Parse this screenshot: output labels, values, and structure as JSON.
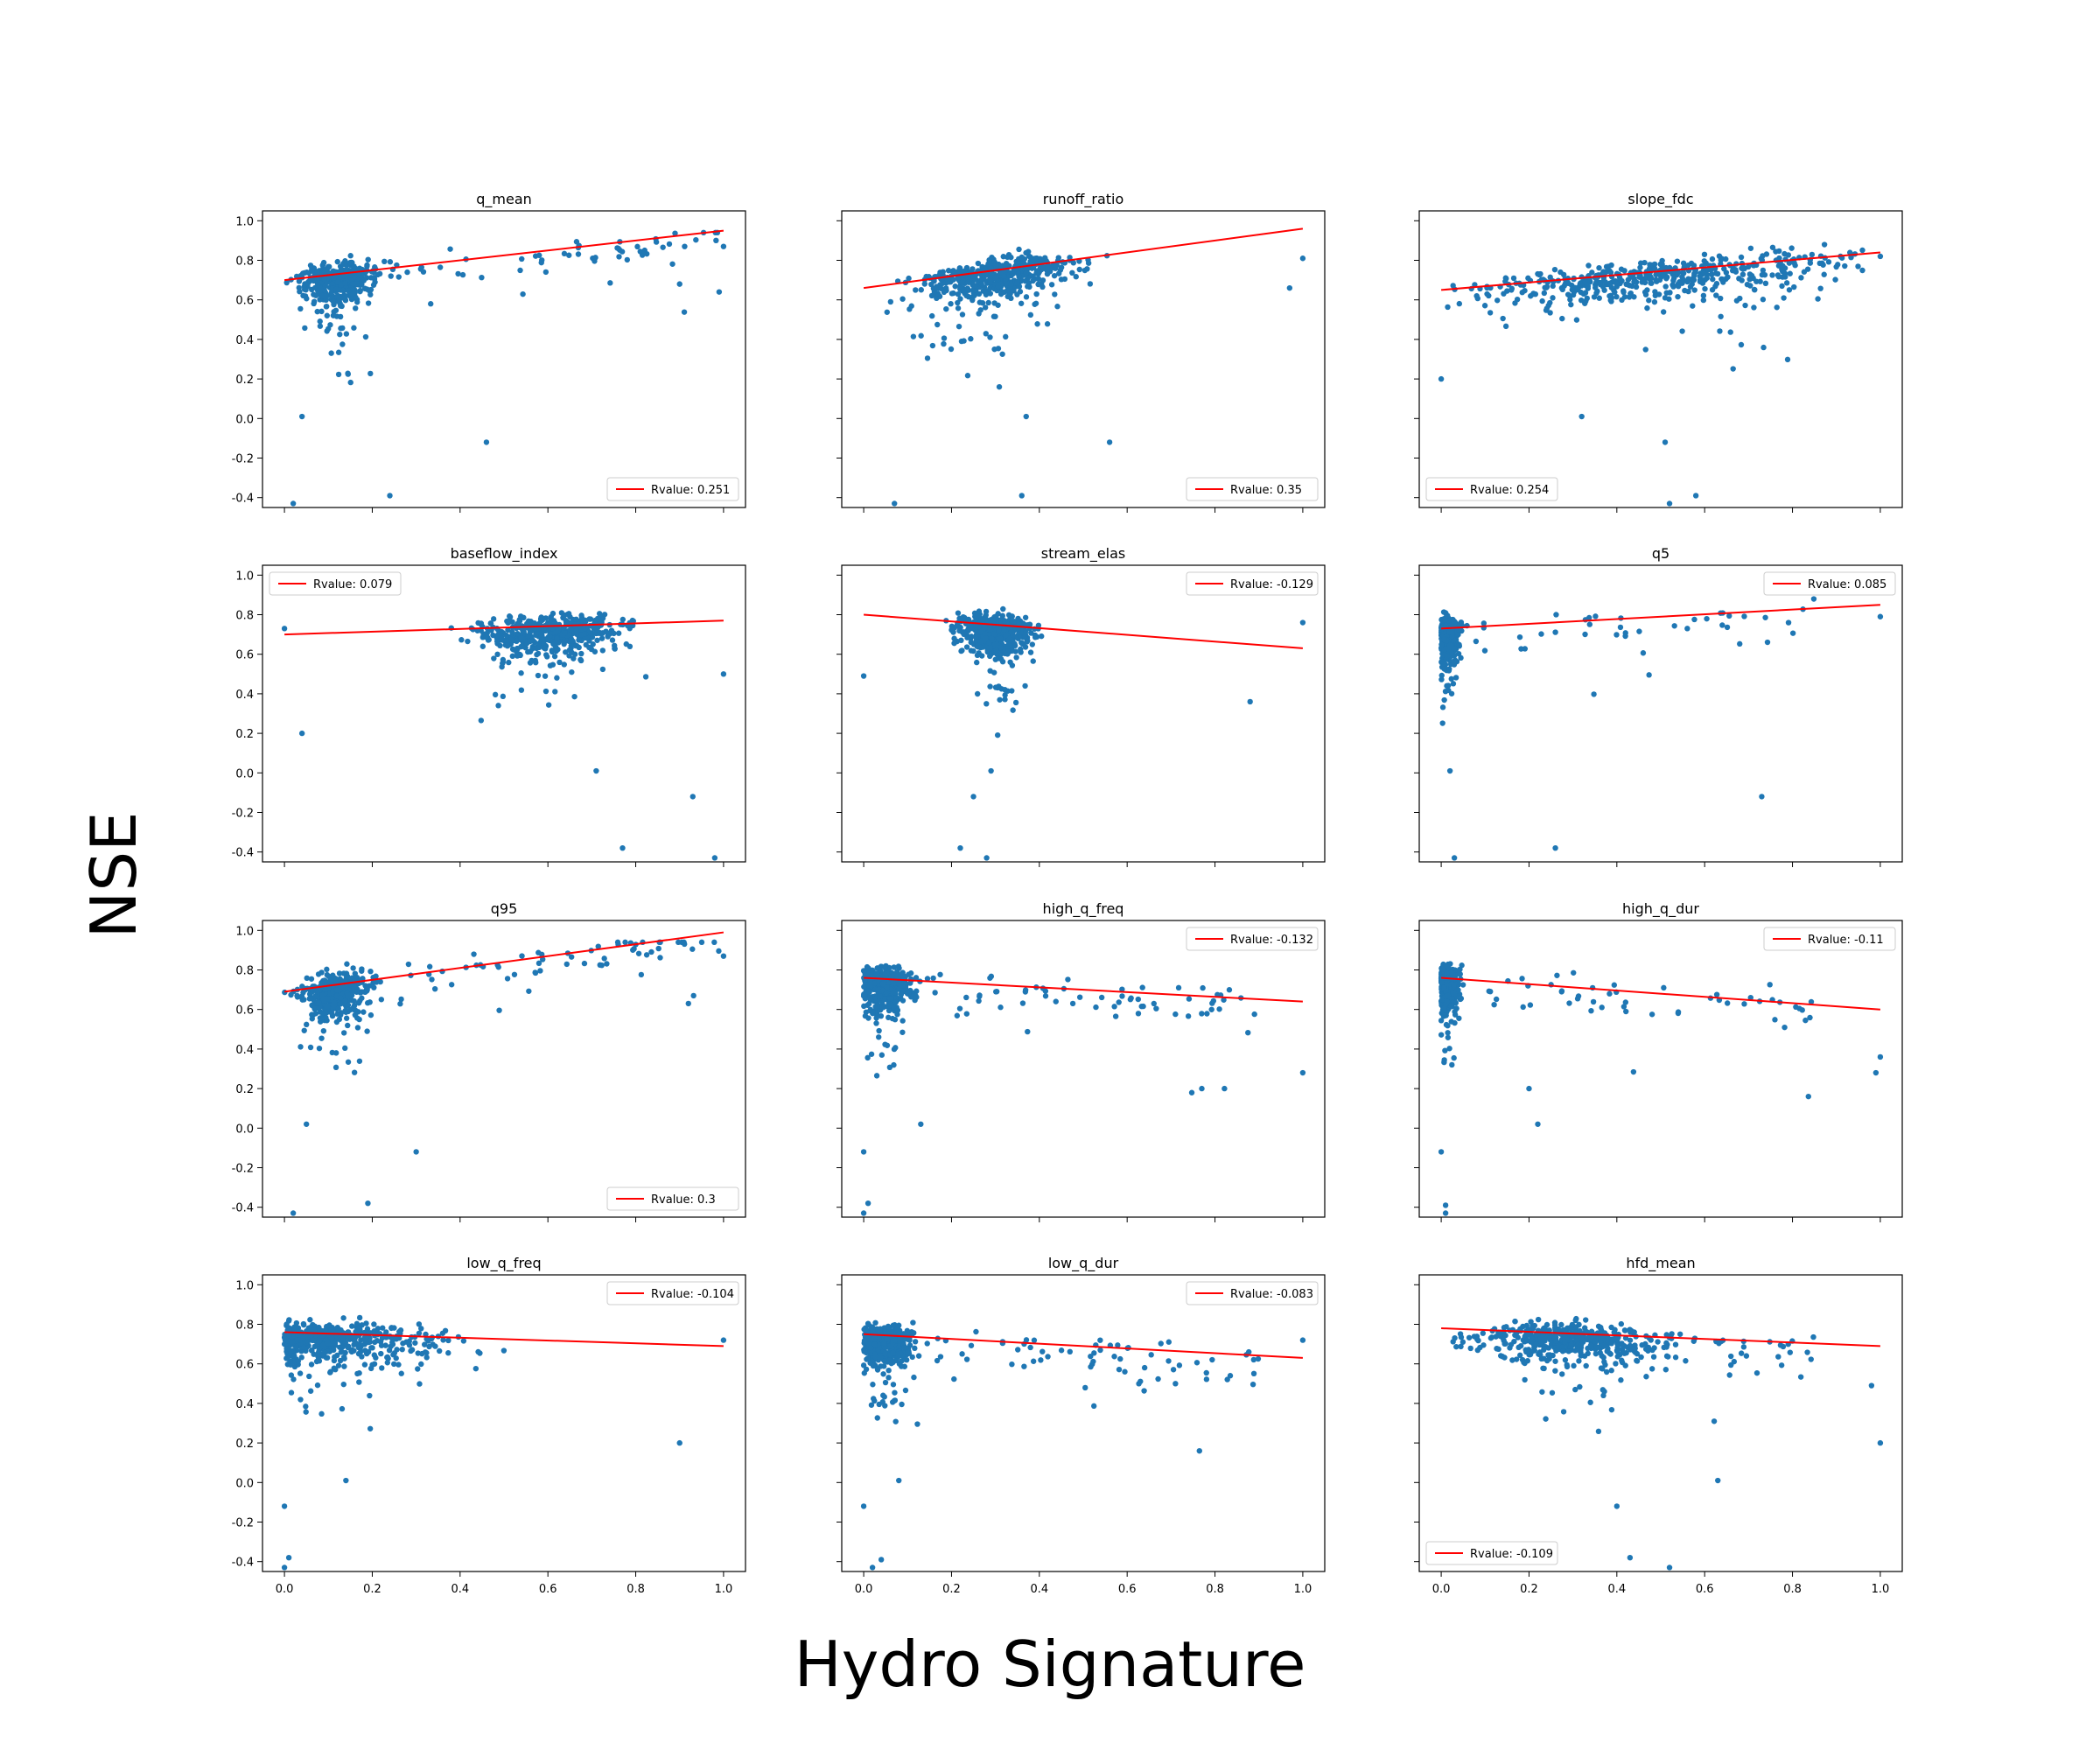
{
  "figure": {
    "xlabel": "Hydro Signature",
    "ylabel": "NSE",
    "point_color": "#1f77b4",
    "line_color": "#ff0000"
  },
  "chart_data": [
    {
      "type": "scatter",
      "title": "q_mean",
      "legend": "Rvalue: 0.251",
      "legend_loc": "lower right",
      "fit": [
        0.7,
        0.95
      ],
      "xlim": [
        -0.05,
        1.05
      ],
      "ylim": [
        -0.45,
        1.05
      ],
      "yticks": [
        "-0.4",
        "-0.2",
        "0.0",
        "0.2",
        "0.4",
        "0.6",
        "0.8",
        "1.0"
      ],
      "xticks": [],
      "dist": "skew",
      "outliers": [
        [
          0.04,
          0.01
        ],
        [
          0.46,
          -0.12
        ],
        [
          0.24,
          -0.39
        ],
        [
          0.02,
          -0.43
        ],
        [
          1.0,
          0.87
        ],
        [
          0.99,
          0.64
        ],
        [
          0.9,
          0.68
        ]
      ]
    },
    {
      "type": "scatter",
      "title": "runoff_ratio",
      "legend": "Rvalue: 0.35",
      "legend_loc": "lower right",
      "fit": [
        0.66,
        0.96
      ],
      "xlim": [
        -0.05,
        1.05
      ],
      "ylim": [
        -0.45,
        1.05
      ],
      "yticks": [],
      "xticks": [],
      "dist": "mid",
      "outliers": [
        [
          0.37,
          0.01
        ],
        [
          0.56,
          -0.12
        ],
        [
          0.36,
          -0.39
        ],
        [
          0.07,
          -0.43
        ],
        [
          1.0,
          0.81
        ],
        [
          0.97,
          0.66
        ]
      ]
    },
    {
      "type": "scatter",
      "title": "slope_fdc",
      "legend": "Rvalue: 0.254",
      "legend_loc": "lower left",
      "fit": [
        0.65,
        0.84
      ],
      "xlim": [
        -0.05,
        1.05
      ],
      "ylim": [
        -0.45,
        1.05
      ],
      "yticks": [],
      "xticks": [],
      "dist": "wide",
      "outliers": [
        [
          0.32,
          0.01
        ],
        [
          0.51,
          -0.12
        ],
        [
          0.58,
          -0.39
        ],
        [
          0.52,
          -0.43
        ],
        [
          0.0,
          0.2
        ],
        [
          1.0,
          0.82
        ]
      ]
    },
    {
      "type": "scatter",
      "title": "baseflow_index",
      "legend": "Rvalue: 0.079",
      "legend_loc": "upper left",
      "fit": [
        0.7,
        0.77
      ],
      "xlim": [
        -0.05,
        1.05
      ],
      "ylim": [
        -0.45,
        1.05
      ],
      "yticks": [
        "-0.4",
        "-0.2",
        "0.0",
        "0.2",
        "0.4",
        "0.6",
        "0.8",
        "1.0"
      ],
      "xticks": [],
      "dist": "right",
      "outliers": [
        [
          0.71,
          0.01
        ],
        [
          0.93,
          -0.12
        ],
        [
          0.77,
          -0.38
        ],
        [
          0.98,
          -0.43
        ],
        [
          0.04,
          0.2
        ],
        [
          0.0,
          0.73
        ],
        [
          1.0,
          0.5
        ]
      ]
    },
    {
      "type": "scatter",
      "title": "stream_elas",
      "legend": "Rvalue: -0.129",
      "legend_loc": "upper right",
      "fit": [
        0.8,
        0.63
      ],
      "xlim": [
        -0.05,
        1.05
      ],
      "ylim": [
        -0.45,
        1.05
      ],
      "yticks": [],
      "xticks": [],
      "dist": "center",
      "outliers": [
        [
          0.29,
          0.01
        ],
        [
          0.25,
          -0.12
        ],
        [
          0.22,
          -0.38
        ],
        [
          0.28,
          -0.43
        ],
        [
          0.0,
          0.49
        ],
        [
          1.0,
          0.76
        ],
        [
          0.88,
          0.36
        ]
      ]
    },
    {
      "type": "scatter",
      "title": "q5",
      "legend": "Rvalue: 0.085",
      "legend_loc": "upper right",
      "fit": [
        0.73,
        0.85
      ],
      "xlim": [
        -0.05,
        1.05
      ],
      "ylim": [
        -0.45,
        1.05
      ],
      "yticks": [],
      "xticks": [],
      "dist": "extreme",
      "outliers": [
        [
          0.02,
          0.01
        ],
        [
          0.73,
          -0.12
        ],
        [
          0.26,
          -0.38
        ],
        [
          0.03,
          -0.43
        ],
        [
          1.0,
          0.79
        ]
      ]
    },
    {
      "type": "scatter",
      "title": "q95",
      "legend": "Rvalue: 0.3",
      "legend_loc": "lower right",
      "fit": [
        0.69,
        0.99
      ],
      "xlim": [
        -0.05,
        1.05
      ],
      "ylim": [
        -0.45,
        1.05
      ],
      "yticks": [
        "-0.4",
        "-0.2",
        "0.0",
        "0.2",
        "0.4",
        "0.6",
        "0.8",
        "1.0"
      ],
      "xticks": [],
      "dist": "skew",
      "outliers": [
        [
          0.05,
          0.02
        ],
        [
          0.3,
          -0.12
        ],
        [
          0.19,
          -0.38
        ],
        [
          0.02,
          -0.43
        ],
        [
          1.0,
          0.87
        ],
        [
          0.92,
          0.63
        ]
      ]
    },
    {
      "type": "scatter",
      "title": "high_q_freq",
      "legend": "Rvalue: -0.132",
      "legend_loc": "upper right",
      "fit": [
        0.76,
        0.64
      ],
      "xlim": [
        -0.05,
        1.05
      ],
      "ylim": [
        -0.45,
        1.05
      ],
      "yticks": [],
      "xticks": [],
      "dist": "left",
      "outliers": [
        [
          0.13,
          0.02
        ],
        [
          0.0,
          -0.12
        ],
        [
          0.01,
          -0.38
        ],
        [
          0.0,
          -0.43
        ],
        [
          1.0,
          0.28
        ],
        [
          0.77,
          0.2
        ]
      ]
    },
    {
      "type": "scatter",
      "title": "high_q_dur",
      "legend": "Rvalue: -0.11",
      "legend_loc": "upper right",
      "fit": [
        0.76,
        0.6
      ],
      "xlim": [
        -0.05,
        1.05
      ],
      "ylim": [
        -0.45,
        1.05
      ],
      "yticks": [],
      "xticks": [],
      "dist": "extreme",
      "outliers": [
        [
          0.22,
          0.02
        ],
        [
          0.0,
          -0.12
        ],
        [
          0.01,
          -0.39
        ],
        [
          0.01,
          -0.43
        ],
        [
          1.0,
          0.36
        ],
        [
          0.99,
          0.28
        ],
        [
          0.2,
          0.2
        ]
      ]
    },
    {
      "type": "scatter",
      "title": "low_q_freq",
      "legend": "Rvalue: -0.104",
      "legend_loc": "upper right",
      "fit": [
        0.76,
        0.69
      ],
      "xlim": [
        -0.05,
        1.05
      ],
      "ylim": [
        -0.45,
        1.05
      ],
      "yticks": [
        "-0.4",
        "-0.2",
        "0.0",
        "0.2",
        "0.4",
        "0.6",
        "0.8",
        "1.0"
      ],
      "xticks": [
        "0.0",
        "0.2",
        "0.4",
        "0.6",
        "0.8",
        "1.0"
      ],
      "dist": "wideleft",
      "outliers": [
        [
          0.14,
          0.01
        ],
        [
          0.0,
          -0.12
        ],
        [
          0.01,
          -0.38
        ],
        [
          0.0,
          -0.43
        ],
        [
          1.0,
          0.72
        ],
        [
          0.9,
          0.2
        ]
      ]
    },
    {
      "type": "scatter",
      "title": "low_q_dur",
      "legend": "Rvalue: -0.083",
      "legend_loc": "upper right",
      "fit": [
        0.75,
        0.63
      ],
      "xlim": [
        -0.05,
        1.05
      ],
      "ylim": [
        -0.45,
        1.05
      ],
      "yticks": [],
      "xticks": [
        "0.0",
        "0.2",
        "0.4",
        "0.6",
        "0.8",
        "1.0"
      ],
      "dist": "left",
      "outliers": [
        [
          0.08,
          0.01
        ],
        [
          0.0,
          -0.12
        ],
        [
          0.04,
          -0.39
        ],
        [
          0.02,
          -0.43
        ],
        [
          1.0,
          0.72
        ],
        [
          0.71,
          0.5
        ]
      ]
    },
    {
      "type": "scatter",
      "title": "hfd_mean",
      "legend": "Rvalue: -0.109",
      "legend_loc": "lower left",
      "fit": [
        0.78,
        0.69
      ],
      "xlim": [
        -0.05,
        1.05
      ],
      "ylim": [
        -0.45,
        1.05
      ],
      "yticks": [],
      "xticks": [
        "0.0",
        "0.2",
        "0.4",
        "0.6",
        "0.8",
        "1.0"
      ],
      "dist": "hfd",
      "outliers": [
        [
          0.4,
          -0.12
        ],
        [
          0.63,
          0.01
        ],
        [
          0.43,
          -0.38
        ],
        [
          0.52,
          -0.43
        ],
        [
          1.0,
          0.2
        ],
        [
          0.98,
          0.49
        ]
      ]
    }
  ]
}
